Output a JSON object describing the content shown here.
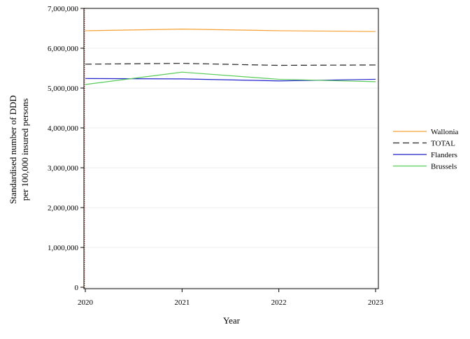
{
  "chart_data": {
    "type": "line",
    "title": "",
    "xlabel": "Year",
    "ylabel_lines": [
      "Standardised number of DDD",
      "per 100,000 insured persons"
    ],
    "x": [
      2020,
      2021,
      2022,
      2023
    ],
    "x_ticks": [
      "2020",
      "2021",
      "2022",
      "2023"
    ],
    "xlim": [
      2020,
      2023
    ],
    "ylim": [
      0,
      7000000
    ],
    "y_ticks": [
      {
        "value": 0,
        "label": "0"
      },
      {
        "value": 1000000,
        "label": "1,000,000"
      },
      {
        "value": 2000000,
        "label": "2,000,000"
      },
      {
        "value": 3000000,
        "label": "3,000,000"
      },
      {
        "value": 4000000,
        "label": "4,000,000"
      },
      {
        "value": 5000000,
        "label": "5,000,000"
      },
      {
        "value": 6000000,
        "label": "6,000,000"
      },
      {
        "value": 7000000,
        "label": "7,000,000"
      }
    ],
    "grid": true,
    "legend_position": "right",
    "series": [
      {
        "name": "Wallonia",
        "color": "#f5a033",
        "dash": "solid",
        "values": [
          6440000,
          6480000,
          6440000,
          6420000
        ]
      },
      {
        "name": "TOTAL",
        "color": "#222222",
        "dash": "dashed",
        "values": [
          5600000,
          5620000,
          5570000,
          5580000
        ]
      },
      {
        "name": "Flanders",
        "color": "#2222cc",
        "dash": "solid",
        "values": [
          5240000,
          5230000,
          5180000,
          5220000
        ]
      },
      {
        "name": "Brussels",
        "color": "#55cc55",
        "dash": "solid",
        "values": [
          5090000,
          5400000,
          5220000,
          5160000
        ]
      }
    ]
  }
}
